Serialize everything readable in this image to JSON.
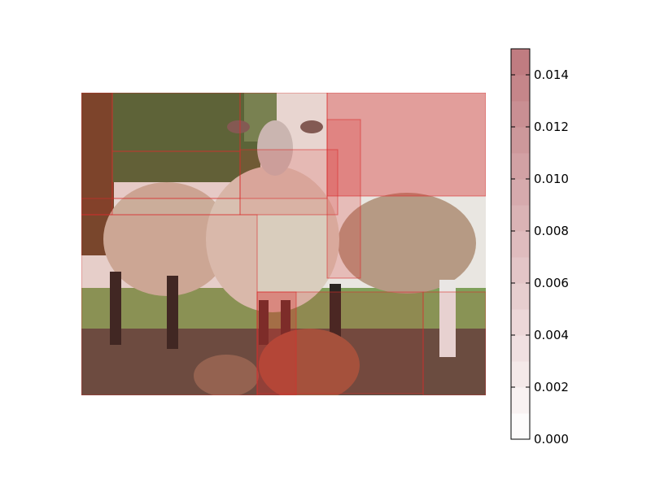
{
  "chart_data": {
    "type": "heatmap",
    "title": "",
    "overlay_color": "#d92b2b",
    "colormap": "white-to-red (semi-transparent)",
    "colorbar": {
      "min": 0.0,
      "max": 0.015,
      "ticks": [
        0.0,
        0.002,
        0.004,
        0.006,
        0.008,
        0.01,
        0.012,
        0.014
      ],
      "tick_labels": [
        "0.000",
        "0.002",
        "0.004",
        "0.006",
        "0.008",
        "0.010",
        "0.012",
        "0.014"
      ],
      "levels": 15
    },
    "regions": [
      {
        "value": 0.0105
      },
      {
        "value": 0.0045
      },
      {
        "value": 0.003
      },
      {
        "value": 0.0025
      },
      {
        "value": 0.006
      },
      {
        "value": 0.0045
      },
      {
        "value": 0.002
      },
      {
        "value": 0.004
      },
      {
        "value": 0.008
      },
      {
        "value": 0.005
      },
      {
        "value": 0.0035
      },
      {
        "value": 0.003
      }
    ]
  }
}
